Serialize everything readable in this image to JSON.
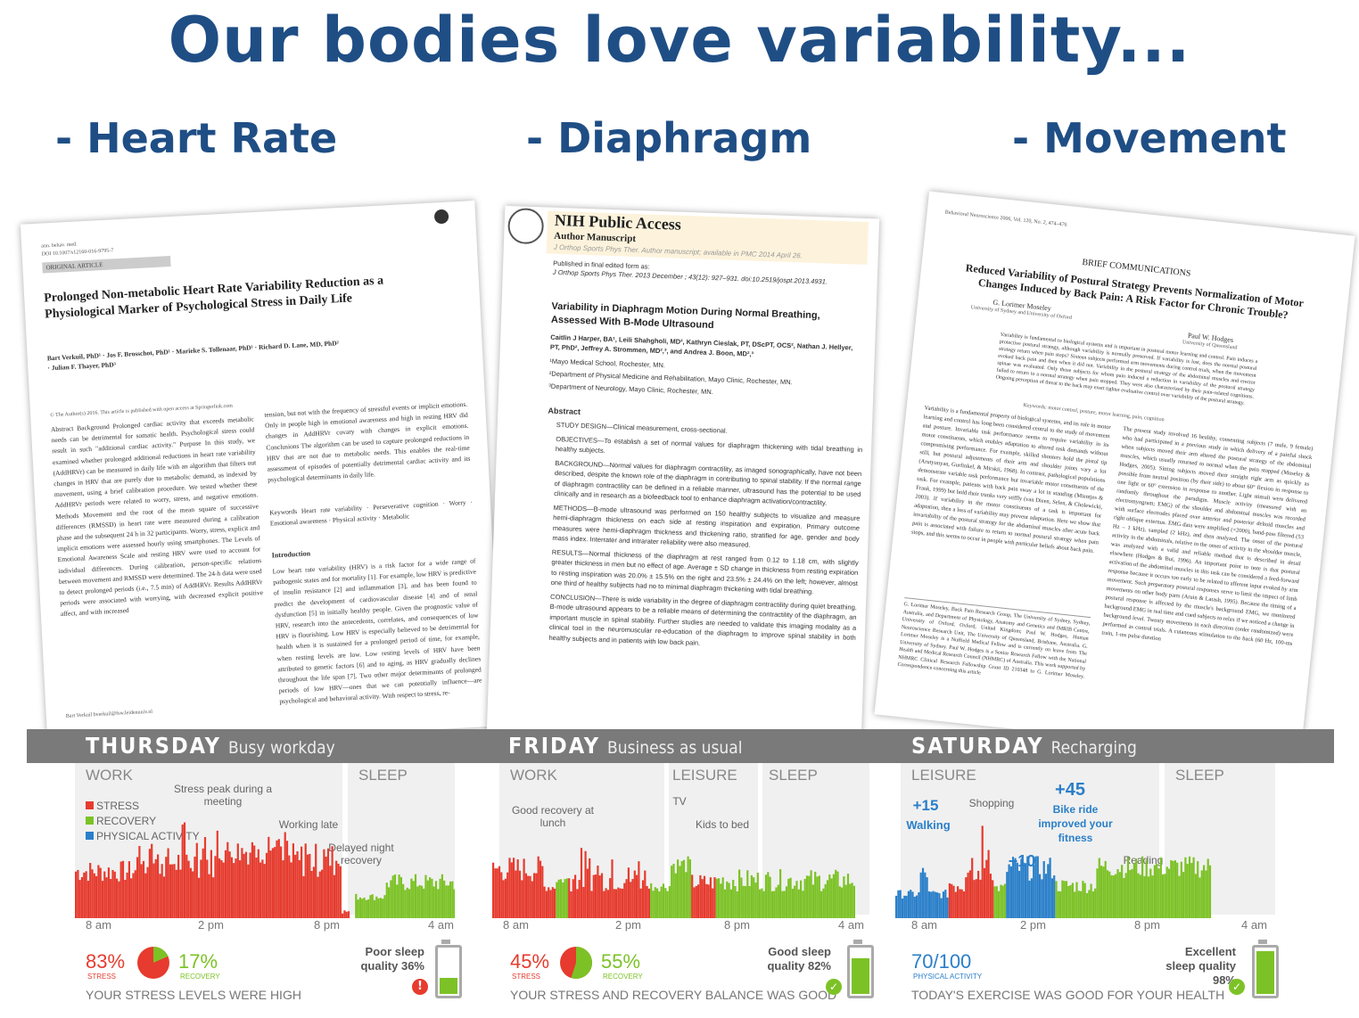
{
  "slide": {
    "title": "Our bodies love variability...",
    "bullets": [
      "- Heart Rate",
      "- Diaphragm",
      "- Movement"
    ]
  },
  "papers": [
    {
      "header_lines": [
        "ann. behav. med.",
        "DOI 10.1007/s12160-016-9795-7"
      ],
      "section": "ORIGINAL ARTICLE",
      "title": "Prolonged Non-metabolic Heart Rate Variability Reduction as a Physiological Marker of Psychological Stress in Daily Life",
      "authors": "Bart Verkuil, PhD¹ · Jos F. Brosschot, PhD¹ · Marieke S. Tollenaar, PhD¹ · Richard D. Lane, MD, PhD² · Julian F. Thayer, PhD³",
      "copyright": "© The Author(s) 2016. This article is published with open access at Springerlink.com",
      "abstract": "Abstract Background Prolonged cardiac activity that exceeds metabolic needs can be detrimental for somatic health. Psychological stress could result in such \"additional cardiac activity.\" Purpose In this study, we examined whether prolonged additional reductions in heart rate variability (AddHRVr) can be measured in daily life with an algorithm that filters out changes in HRV that are purely due to metabolic demand, as indexed by movement, using a brief calibration procedure. We tested whether these AddHRVr periods were related to worry, stress, and negative emotions. Methods Movement and the root of the mean square of successive differences (RMSSD) in heart rate were measured during a calibration phase and the subsequent 24 h in 32 participants. Worry, stress, explicit and implicit emotions were assessed hourly using smartphones. The Levels of Emotional Awareness Scale and resting HRV were used to account for individual differences. During calibration, person-specific relations between movement and RMSSD were determined. The 24-h data were used to detect prolonged periods (i.e., 7.5 min) of AddHRVr. Results AddHRVr periods were associated with worrying, with decreased explicit positive affect, and with increased",
      "col2": "tension, but not with the frequency of stressful events or implicit emotions. Only in people high in emotional awareness and high in resting HRV did changes in AddHRVr covary with changes in explicit emotions. Conclusions The algorithm can be used to capture prolonged reductions in HRV that are not due to metabolic needs. This enables the real-time assessment of episodes of potentially detrimental cardiac activity and its psychological determinants in daily life.",
      "keywords": "Keywords Heart rate variability · Perseverative cognition · Worry · Emotional awareness · Physical activity · Metabolic",
      "intro_head": "Introduction",
      "intro": "Low heart rate variability (HRV) is a risk factor for a wide range of pathogenic states and for mortality [1]. For example, low HRV is predictive of insulin resistance [2] and inflammation [3], and has been found to predict the development of cardiovascular disease [4] and of renal dysfunction [5] in initially healthy people. Given the prognostic value of HRV, research into the antecedents, correlates, and consequences of low HRV is flourishing. Low HRV is especially believed to be detrimental for health when it is sustained for a prolonged period of time, for example, when resting levels are low. Low resting levels of HRV have been attributed to genetic factors [6] and to aging, as HRV gradually declines throughout the life span [7]. Two other major determinants of prolonged periods of low HRV—ones that we can potentially influence—are psychological and behavioral activity. With respect to stress, re-",
      "footer": "Bart Verkuil  bverkuil@fsw.leidenuniv.nl"
    },
    {
      "banner": "NIH Public Access",
      "banner_sub": "Author Manuscript",
      "journal_note": "J Orthop Sports Phys Ther. Author manuscript; available in PMC 2014 April 26.",
      "published": "Published in final edited form as:",
      "citation": "J Orthop Sports Phys Ther. 2013 December ; 43(12): 927–931. doi:10.2519/jospt.2013.4931.",
      "title": "Variability in Diaphragm Motion During Normal Breathing, Assessed With B-Mode Ultrasound",
      "authors": "Caitlin J Harper, BA¹, Leili Shahgholi, MD², Kathryn Cieslak, PT, DScPT, OCS², Nathan J. Hellyer, PT, PhD², Jeffrey A. Strommen, MD²,³, and Andrea J. Boon, MD²,³",
      "affil1": "¹Mayo Medical School, Rochester, MN.",
      "affil2": "²Department of Physical Medicine and Rehabilitation, Mayo Clinic, Rochester, MN.",
      "affil3": "³Department of Neurology, Mayo Clinic, Rochester, MN.",
      "abstract_head": "Abstract",
      "design": "STUDY DESIGN—Clinical measurement, cross-sectional.",
      "objectives": "OBJECTIVES—To establish a set of normal values for diaphragm thickening with tidal breathing in healthy subjects.",
      "background": "BACKGROUND—Normal values for diaphragm contractility, as imaged sonographically, have not been described, despite the known role of the diaphragm in contributing to spinal stability. If the normal range of diaphragm contractility can be defined in a reliable manner, ultrasound has the potential to be used clinically and in research as a biofeedback tool to enhance diaphragm activation/contractility.",
      "methods": "METHODS—B-mode ultrasound was performed on 150 healthy subjects to visualize and measure hemi-diaphragm thickness on each side at resting inspiration and expiration. Primary outcome measures were hemi-diaphragm thickness and thickening ratio, stratified for age, gender and body mass index. Interrater and intrarater reliability were also measured.",
      "results": "RESULTS—Normal thickness of the diaphragm at rest ranged from 0.12 to 1.18 cm, with slightly greater thickness in men but no effect of age. Average ± SD change in thickness from resting expiration to resting inspiration was 20.0% ± 15.5% on the right and 23.5% ± 24.4% on the left; however, almost one third of healthy subjects had no to minimal diaphragm thickening with tidal breathing.",
      "conclusion": "CONCLUSION—There is wide variability in the degree of diaphragm contractility during quiet breathing. B-mode ultrasound appears to be a reliable means of determining the contractility of the diaphragm, an important muscle in spinal stability. Further studies are needed to validate this imaging modality as a clinical tool in the neuromuscular re-education of the diaphragm to improve spinal stability in both healthy subjects and in patients with low back pain."
    },
    {
      "header": "Behavioral Neuroscience 2006, Vol. 120, No. 2, 474–476",
      "section": "BRIEF COMMUNICATIONS",
      "title": "Reduced Variability of Postural Strategy Prevents Normalization of Motor Changes Induced by Back Pain: A Risk Factor for Chronic Trouble?",
      "author1": "G. Lorimer Moseley",
      "affil1": "University of Sydney and University of Oxford",
      "author2": "Paul W. Hodges",
      "affil2": "University of Queensland",
      "abstract": "Variability is fundamental to biological systems and is important in postural motor learning and control. Pain induces a protective postural strategy, although variability is normally preserved. If variability is lost, does the normal postural strategy return when pain stops? Sixteen subjects performed arm movements during control trials, when the movement evoked back pain and then when it did not. Variability in the postural strategy of the abdominal muscles and erector spinae was evaluated. Only those subjects for whom pain induced a reduction in variability of the postural strategy failed to return to a normal strategy when pain stopped. They were also characterized by their pain-related cognitions. Ongoing perception of threat to the back may exert tighter evaluative control over variability of the postural strategy.",
      "keywords": "Keywords: motor control, posture, motor learning, pain, cognition",
      "body1": "Variability is a fundamental property of biological systems, and its role in motor learning and control has long been considered central to the study of movement and posture. Invariable task performance seems to require variability in its motor constituents, which enables adaptation to altered task demands without compromising performance. For example, skilled shooters hold the pistol tip still, but postural adjustments of their arm and shoulder joints vary a lot (Arutyunyan, Gurfinkel, & Mirskii, 1968). In contrast, pathological populations demonstrate variable task performance but invariable motor constituents of the task. For example, patients with back pain sway a lot in standing (Mientjes & Frank, 1999) but hold their trunks very stiffly (van Dieen, Selen, & Cholewicki, 2003). If variability in the motor constituents of a task is important for adaptation, then a loss of variability may prevent adaptation. Here we show that invariability of the postural strategy for the abdominal muscles after acute back pain is associated with failure to return to normal postural strategy when pain stops, and this seems to occur in people with particular beliefs about back pain.",
      "body2": "The present study involved 16 healthy, consenting subjects (7 male, 9 female) who had participated in a previous study in which delivery of a painful shock when subjects moved their arm altered the postural strategy of the abdominal muscles, which usually returned to normal when the pain stopped (Moseley & Hodges, 2005). Sitting subjects moved their straight right arm as quickly as possible from neutral position (by their side) to about 60° flexion in response to one light or 60° extension in response to another. Light stimuli were delivered randomly throughout the paradigm. Muscle activity (measured with an electromyogram; EMG) of the shoulder and abdominal muscles was recorded with surface electrodes placed over anterior and posterior deltoid muscles and right oblique externus. EMG data were amplified (×2000), band-pass filtered (53 Hz – 1 kHz), sampled (2 kHz), and then analyzed. The onset of the postural activity in the abdominals, relative to the onset of activity in the shoulder muscle, was analyzed with a valid and reliable method that is described in detail elsewhere (Hodges & Bui, 1996). An important point to note is that postural activation of the abdominal muscles in this task can be considered a feed-forward response because it occurs too early to be related to afferent input evoked by arm movement. Such preparatory postural responses serve to limit the impact of limb movements on other body parts (Aruin & Latash, 1995). Because the timing of a postural response is affected by the muscle's background EMG, we monitored background EMG in real time and cued subjects to relax if we noticed a change in background level. Twenty movements in each direction (order randomized) were performed as control trials. A cutaneous stimulation to the back (60 Hz, 100-ms train, 1-ms pulse duration",
      "footnote": "G. Lorimer Moseley, Back Pain Research Group, The University of Sydney, Sydney, Australia, and Department of Physiology, Anatomy and Genetics and fMRIB Centre, University of Oxford, Oxford, United Kingdom; Paul W. Hodges, Human Neuroscience Research Unit, The University of Queensland, Brisbane, Australia. G. Lorimer Moseley is a Nuffield Medical Fellow and is currently on leave from The University of Sydney. Paul W. Hodges is a Senior Research Fellow with the National Health and Medical Research Council (NHMRC) of Australia. This work supported by NHMRC Clinical Research Fellowship Grant ID 210348 to G. Lorimer Moseley. Correspondence concerning this article"
    }
  ],
  "days": [
    {
      "name": "THURSDAY",
      "sub": "Busy workday",
      "panels": [
        "WORK",
        "SLEEP"
      ],
      "legend": [
        "STRESS",
        "RECOVERY",
        "PHYSICAL ACTIVITY"
      ],
      "annotations": [
        "Stress peak during a meeting",
        "Working late",
        "Delayed night recovery"
      ],
      "ticks": [
        "8 am",
        "2 pm",
        "8 pm",
        "4 am"
      ],
      "stress_pct": "83%",
      "stress_label": "STRESS",
      "recovery_pct": "17%",
      "recovery_label": "RECOVERY",
      "sleep": "Poor sleep quality 36%",
      "verdict": "YOUR STRESS LEVELS WERE HIGH"
    },
    {
      "name": "FRIDAY",
      "sub": "Business as usual",
      "panels": [
        "WORK",
        "LEISURE",
        "SLEEP"
      ],
      "annotations": [
        "Good recovery at lunch",
        "TV",
        "Kids to bed"
      ],
      "ticks": [
        "8 am",
        "2 pm",
        "8 pm",
        "4 am"
      ],
      "stress_pct": "45%",
      "stress_label": "STRESS",
      "recovery_pct": "55%",
      "recovery_label": "RECOVERY",
      "sleep": "Good sleep quality 82%",
      "verdict": "YOUR STRESS AND RECOVERY BALANCE WAS GOOD"
    },
    {
      "name": "SATURDAY",
      "sub": "Recharging",
      "panels": [
        "LEISURE",
        "SLEEP"
      ],
      "annotations": [
        "Shopping",
        "Reading"
      ],
      "blue_annotations": [
        "+15",
        "Walking",
        "+45",
        "Bike ride improved your fitness",
        "+10"
      ],
      "ticks": [
        "8 am",
        "2 pm",
        "8 pm",
        "4 am"
      ],
      "score": "70/100",
      "score_label": "PHYSICAL ACTIVITY",
      "sleep": "Excellent sleep quality 98%",
      "verdict": "TODAY'S EXERCISE WAS GOOD FOR YOUR HEALTH"
    }
  ],
  "colors": {
    "stress": "#e63b2e",
    "recovery": "#7cc226",
    "activity": "#2a7fc9",
    "title": "#1f4e85"
  }
}
